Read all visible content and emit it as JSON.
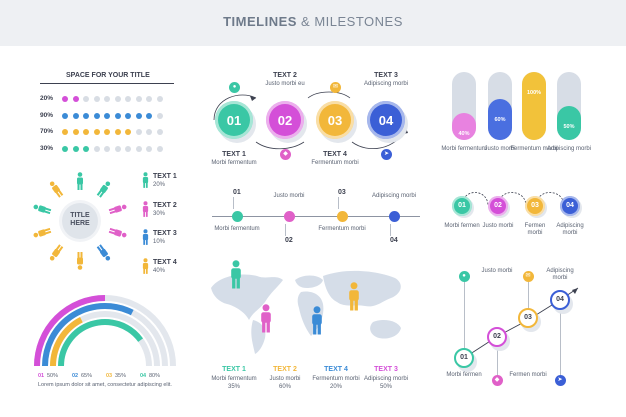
{
  "header": {
    "title_bold": "TIMELINES",
    "title_rest": " & MILESTONES"
  },
  "dotmatrix": {
    "title": "SPACE FOR YOUR TITLE",
    "rows": [
      {
        "label": "20%",
        "color": "#d44fd8",
        "filled": 2
      },
      {
        "label": "90%",
        "color": "#3b8bd6",
        "filled": 9
      },
      {
        "label": "70%",
        "color": "#f2b73a",
        "filled": 7
      },
      {
        "label": "30%",
        "color": "#3ac7a5",
        "filled": 3
      }
    ],
    "total": 10
  },
  "people": {
    "center": "TITLE\nHERE",
    "legend": [
      {
        "title": "TEXT 1",
        "value": "20%",
        "color": "#3ac7a5"
      },
      {
        "title": "TEXT 2",
        "value": "30%",
        "color": "#e060c8"
      },
      {
        "title": "TEXT 3",
        "value": "10%",
        "color": "#3b8bd6"
      },
      {
        "title": "TEXT 4",
        "value": "40%",
        "color": "#f2b73a"
      }
    ]
  },
  "arcs": {
    "items": [
      {
        "num": "01",
        "value": "50%",
        "color": "#d44fd8",
        "frac": 0.5
      },
      {
        "num": "02",
        "value": "65%",
        "color": "#3b8bd6",
        "frac": 0.65
      },
      {
        "num": "03",
        "value": "35%",
        "color": "#f2b73a",
        "frac": 0.35
      },
      {
        "num": "04",
        "value": "80%",
        "color": "#3ac7a5",
        "frac": 0.8
      }
    ],
    "caption": "Lorem ipsum dolor sit amet, consectetur adipiscing elit."
  },
  "circles": {
    "items": [
      {
        "num": "01",
        "color": "#3ac7a5",
        "top_title": "",
        "top_sub": "",
        "bottom_title": "TEXT 1",
        "bottom_sub": "Morbi fermentum"
      },
      {
        "num": "02",
        "color": "#d44fd8",
        "top_title": "TEXT 2",
        "top_sub": "Justo morbi eu",
        "bottom_title": "",
        "bottom_sub": ""
      },
      {
        "num": "03",
        "color": "#f2b73a",
        "top_title": "",
        "top_sub": "",
        "bottom_title": "TEXT 4",
        "bottom_sub": "Fermentum morbi"
      },
      {
        "num": "04",
        "color": "#3b5fd6",
        "top_title": "TEXT 3",
        "top_sub": "Adipiscing morbi",
        "bottom_title": "",
        "bottom_sub": ""
      }
    ]
  },
  "timeline": {
    "items": [
      {
        "num": "01",
        "label": "Morbi fermentum",
        "color": "#3ac7a5"
      },
      {
        "num": "02",
        "label": "Justo morbi",
        "color": "#e060c8"
      },
      {
        "num": "03",
        "label": "Fermentum morbi",
        "color": "#f2b73a"
      },
      {
        "num": "04",
        "label": "Adipiscing morbi",
        "color": "#3b5fd6"
      }
    ]
  },
  "map": {
    "items": [
      {
        "title": "TEXT 1",
        "sub": "Morbi fermentum",
        "value": "35%",
        "color": "#3ac7a5"
      },
      {
        "title": "TEXT 2",
        "sub": "Justo morbi",
        "value": "60%",
        "color": "#f2b73a"
      },
      {
        "title": "TEXT 4",
        "sub": "Fermentum morbi",
        "value": "20%",
        "color": "#3b8bd6"
      },
      {
        "title": "TEXT 3",
        "sub": "Adipiscing morbi",
        "value": "50%",
        "color": "#d44fd8"
      }
    ]
  },
  "pills": {
    "items": [
      {
        "value": "40%",
        "frac": 0.4,
        "color": "#e882e0",
        "label": "Morbi fermentum"
      },
      {
        "value": "60%",
        "frac": 0.6,
        "color": "#4a6fe0",
        "label": "Justo morbi"
      },
      {
        "value": "100%",
        "frac": 1.0,
        "color": "#f2c23a",
        "label": "Fermentum morbi"
      },
      {
        "value": "50%",
        "frac": 0.5,
        "color": "#3ac7a5",
        "label": "Adipiscing morbi"
      }
    ]
  },
  "wave": {
    "items": [
      {
        "num": "01",
        "color": "#3ac7a5",
        "label": "Morbi fermen"
      },
      {
        "num": "02",
        "color": "#d44fd8",
        "label": "Justo morbi"
      },
      {
        "num": "03",
        "color": "#f2b73a",
        "label": "Fermen morbi"
      },
      {
        "num": "04",
        "color": "#3b5fd6",
        "label": "Adipiscing morbi"
      }
    ]
  },
  "stairs": {
    "items": [
      {
        "num": "01",
        "color": "#3ac7a5",
        "label": "Morbi fermen"
      },
      {
        "num": "02",
        "color": "#d44fd8",
        "label": "Justo morbi"
      },
      {
        "num": "03",
        "color": "#f2b73a",
        "label": "Fermen morbi"
      },
      {
        "num": "04",
        "color": "#3b5fd6",
        "label": "Adipiscing morbi"
      }
    ]
  }
}
